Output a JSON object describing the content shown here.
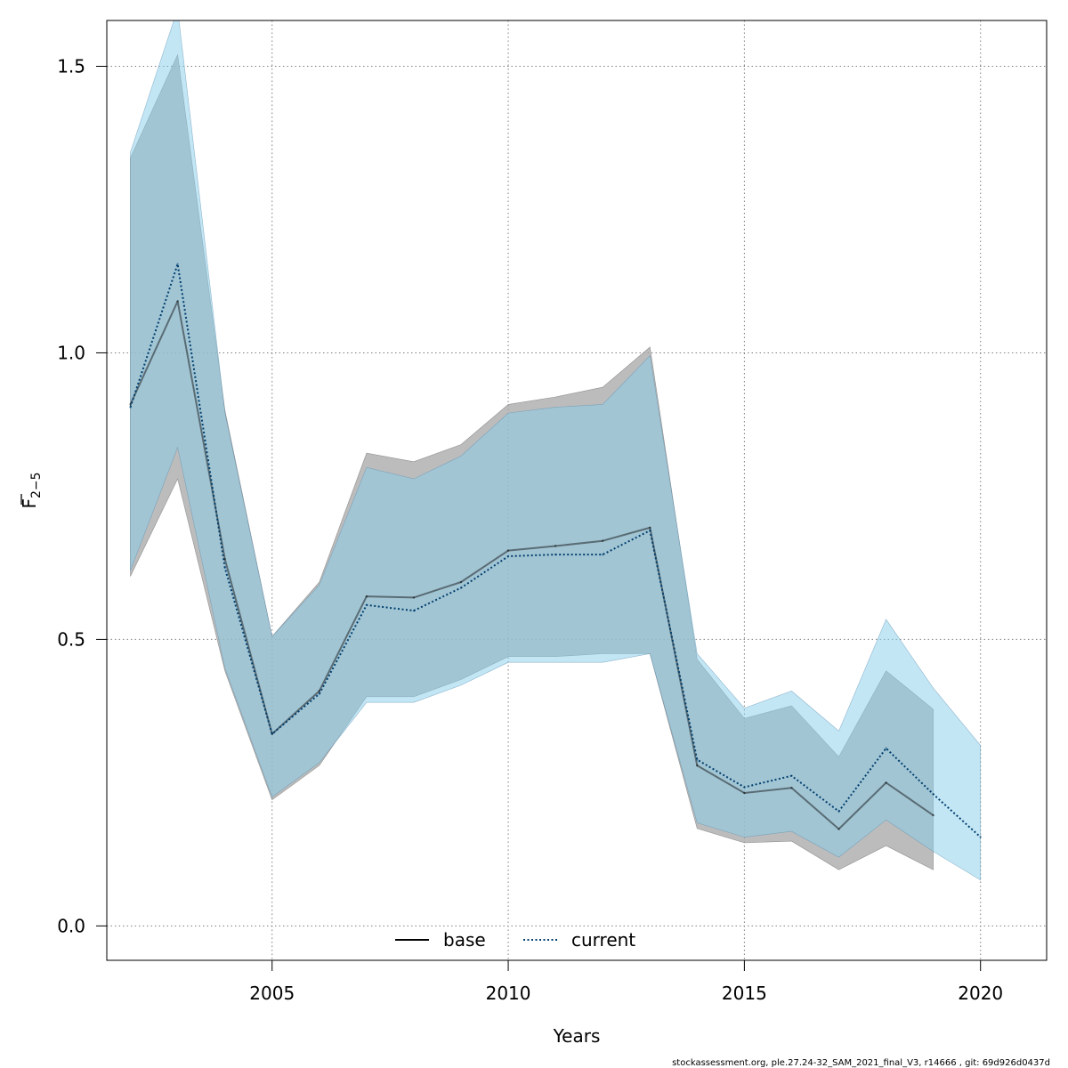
{
  "chart_data": {
    "type": "line",
    "xlabel": "Years",
    "ylabel_main": "F",
    "ylabel_sub": "2−5",
    "xlim": [
      2001.5,
      2021.4
    ],
    "ylim": [
      -0.06,
      1.58
    ],
    "x_ticks": [
      2005,
      2010,
      2015,
      2020
    ],
    "y_ticks": [
      0.0,
      0.5,
      1.0,
      1.5
    ],
    "x_tick_labels": [
      "2005",
      "2010",
      "2015",
      "2020"
    ],
    "y_tick_labels": [
      "0.0",
      "0.5",
      "1.0",
      "1.5"
    ],
    "grid": true,
    "legend_position": "bottom-center",
    "footer": "stockassessment.org, ple.27.24-32_SAM_2021_final_V3, r14666 , git: 69d926d0437d",
    "colors": {
      "base_line": "#000000",
      "base_band": "#a6a6a6",
      "current_line": "#003f6e",
      "current_band": "#87ceeb"
    },
    "series": [
      {
        "name": "base",
        "style": "solid",
        "x": [
          2002,
          2003,
          2004,
          2005,
          2006,
          2007,
          2008,
          2009,
          2010,
          2011,
          2012,
          2013,
          2014,
          2015,
          2016,
          2017,
          2018,
          2019
        ],
        "estimate": [
          0.91,
          1.09,
          0.64,
          0.335,
          0.41,
          0.575,
          0.573,
          0.6,
          0.655,
          0.663,
          0.672,
          0.695,
          0.28,
          0.232,
          0.241,
          0.169,
          0.25,
          0.193
        ],
        "upper": [
          1.34,
          1.52,
          0.9,
          0.505,
          0.6,
          0.825,
          0.81,
          0.84,
          0.91,
          0.923,
          0.94,
          1.01,
          0.465,
          0.362,
          0.384,
          0.295,
          0.445,
          0.378
        ],
        "lower": [
          0.61,
          0.78,
          0.445,
          0.22,
          0.28,
          0.4,
          0.4,
          0.43,
          0.47,
          0.47,
          0.475,
          0.475,
          0.17,
          0.145,
          0.148,
          0.098,
          0.14,
          0.098
        ]
      },
      {
        "name": "current",
        "style": "dotted",
        "x": [
          2002,
          2003,
          2004,
          2005,
          2006,
          2007,
          2008,
          2009,
          2010,
          2011,
          2012,
          2013,
          2014,
          2015,
          2016,
          2017,
          2018,
          2019,
          2020
        ],
        "estimate": [
          0.905,
          1.155,
          0.625,
          0.335,
          0.405,
          0.56,
          0.55,
          0.59,
          0.645,
          0.648,
          0.648,
          0.69,
          0.29,
          0.242,
          0.262,
          0.2,
          0.31,
          0.23,
          0.155
        ],
        "upper": [
          1.35,
          1.6,
          0.895,
          0.505,
          0.595,
          0.8,
          0.78,
          0.82,
          0.895,
          0.905,
          0.91,
          0.995,
          0.475,
          0.38,
          0.41,
          0.34,
          0.535,
          0.415,
          0.315
        ],
        "lower": [
          0.62,
          0.835,
          0.45,
          0.225,
          0.285,
          0.39,
          0.39,
          0.42,
          0.46,
          0.46,
          0.46,
          0.475,
          0.18,
          0.155,
          0.165,
          0.12,
          0.185,
          0.13,
          0.08
        ]
      }
    ]
  }
}
